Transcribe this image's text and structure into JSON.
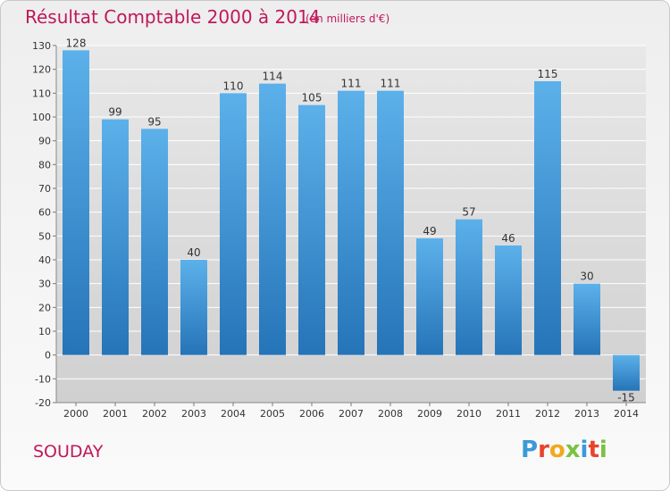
{
  "title": "Résultat Comptable 2000 à 2014",
  "subtitle": "(en milliers d'€)",
  "commune": "SOUDAY",
  "logo": {
    "text": "Proxiti",
    "letter_colors": [
      "#3a9ad9",
      "#e8442c",
      "#f2a81d",
      "#7ac142",
      "#3a9ad9",
      "#e8442c",
      "#7ac142"
    ]
  },
  "colors": {
    "title": "#c0185a",
    "bar_top": "#5cb1ea",
    "bar_bottom": "#2574b8",
    "grid": "#ffffff",
    "plot_bg": "#dedede"
  },
  "chart_data": {
    "type": "bar",
    "categories": [
      "2000",
      "2001",
      "2002",
      "2003",
      "2004",
      "2005",
      "2006",
      "2007",
      "2008",
      "2009",
      "2010",
      "2011",
      "2012",
      "2013",
      "2014"
    ],
    "values": [
      128,
      99,
      95,
      40,
      110,
      114,
      105,
      111,
      111,
      49,
      57,
      46,
      115,
      30,
      -15
    ],
    "labels": [
      "128",
      "99",
      "95",
      "40",
      "110",
      "114",
      "105",
      "111",
      "111",
      "49",
      "57",
      "46",
      "115",
      "30",
      "-15"
    ],
    "ylim": [
      -20,
      130
    ],
    "yticks": [
      "-20",
      "-10",
      "0",
      "10",
      "20",
      "30",
      "40",
      "50",
      "60",
      "70",
      "80",
      "90",
      "100",
      "110",
      "120",
      "130"
    ],
    "grid": true
  }
}
